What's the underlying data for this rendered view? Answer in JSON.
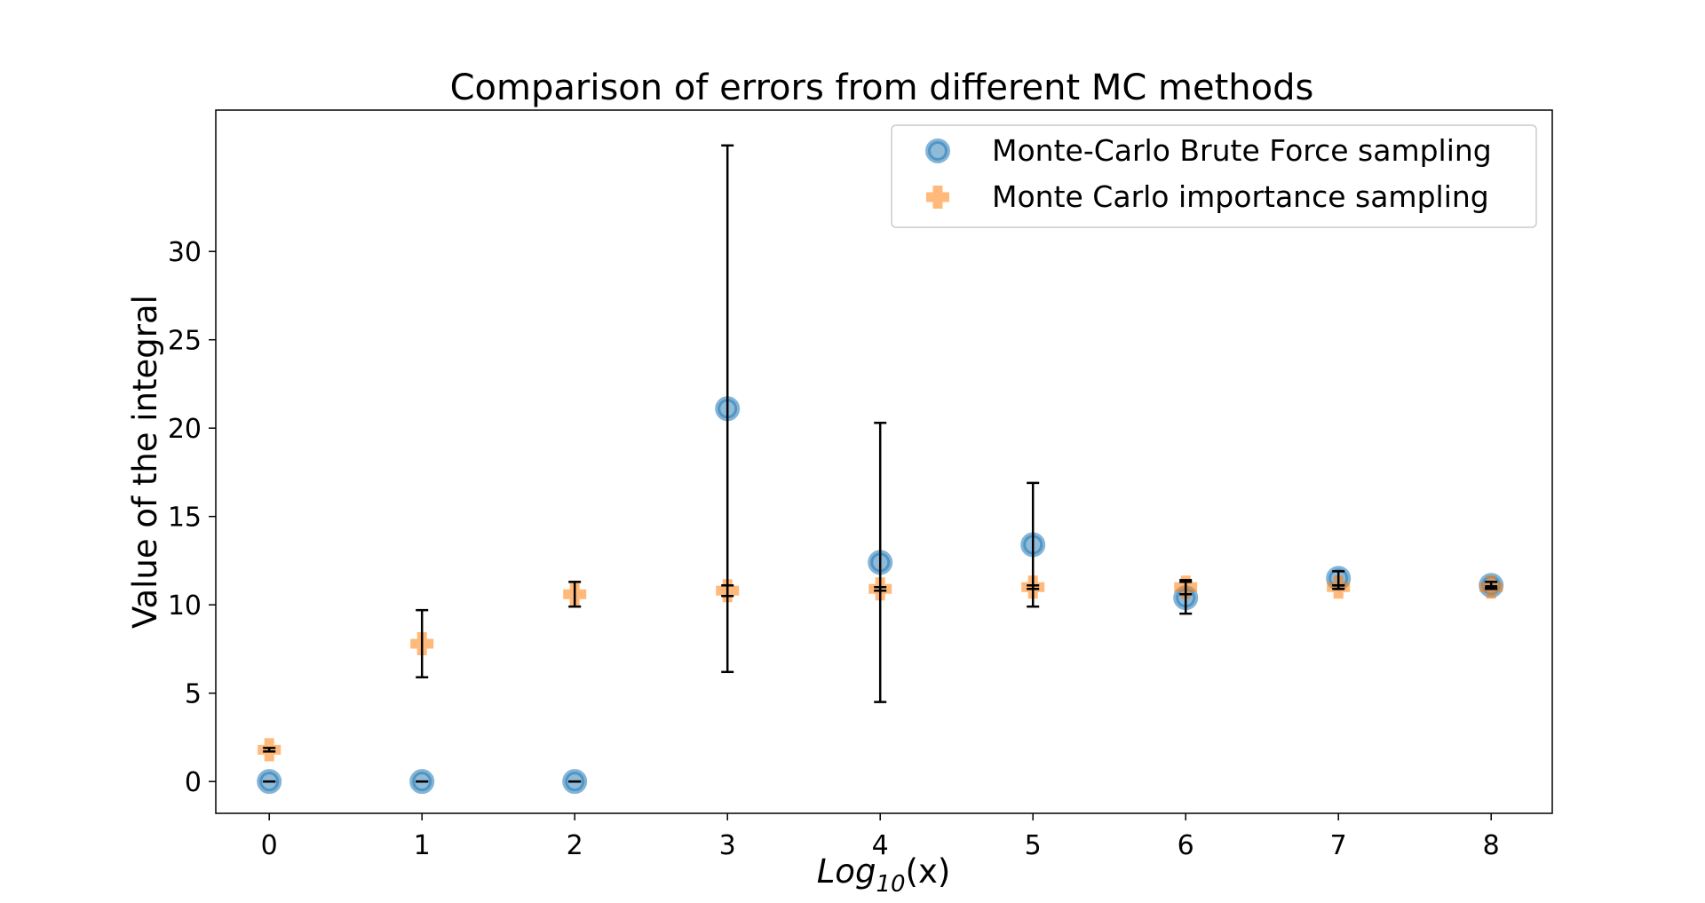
{
  "chart_data": {
    "type": "scatter",
    "title": "Comparison of errors from different MC methods",
    "xlabel": {
      "base": "Log",
      "subscript": "10",
      "suffix": "(x)"
    },
    "ylabel": "Value of the integral",
    "xlim": [
      -0.35,
      8.4
    ],
    "ylim": [
      -1.8,
      38.0
    ],
    "xticks": [
      0,
      1,
      2,
      3,
      4,
      5,
      6,
      7,
      8
    ],
    "yticks": [
      0,
      5,
      10,
      15,
      20,
      25,
      30
    ],
    "grid": false,
    "legend_position": "top-right",
    "series": [
      {
        "name": "Monte-Carlo Brute Force sampling",
        "marker": "circle",
        "color": "#1f77b4",
        "x": [
          0,
          1,
          2,
          3,
          4,
          5,
          6,
          7,
          8
        ],
        "y": [
          0.0,
          0.0,
          0.0,
          21.1,
          12.4,
          13.4,
          10.4,
          11.5,
          11.1
        ],
        "yerr": [
          0.0,
          0.0,
          0.0,
          14.9,
          7.9,
          3.5,
          0.9,
          0.4,
          0.2
        ]
      },
      {
        "name": "Monte Carlo importance sampling",
        "marker": "plus",
        "color": "#ff7f0e",
        "x": [
          0,
          1,
          2,
          3,
          4,
          5,
          6,
          7,
          8
        ],
        "y": [
          1.8,
          7.8,
          10.6,
          10.8,
          10.9,
          11.0,
          11.0,
          11.0,
          11.0
        ],
        "yerr": [
          0.1,
          1.9,
          0.7,
          0.3,
          0.1,
          0.1,
          0.4,
          0.1,
          0.05
        ]
      }
    ]
  }
}
